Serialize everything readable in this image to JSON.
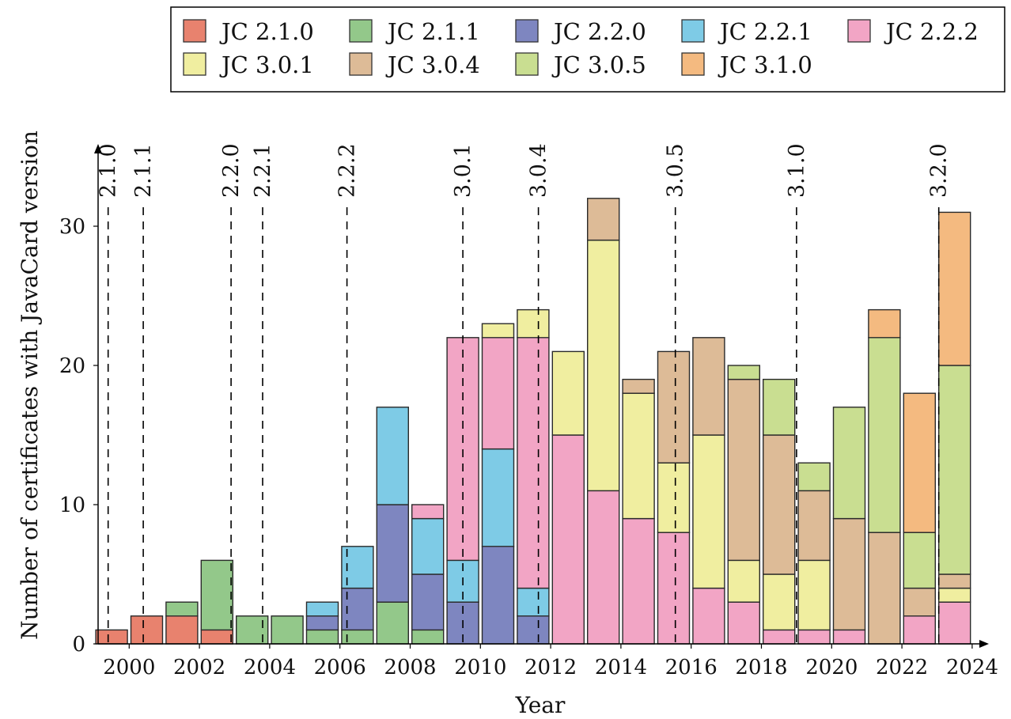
{
  "chart_data": {
    "type": "bar",
    "stacked": true,
    "title": "",
    "xlabel": "Year",
    "ylabel": "Number of certificates with JavaCard version",
    "ylim": [
      0,
      35
    ],
    "y_ticks": [
      0,
      10,
      20,
      30
    ],
    "x_range": [
      1999.25,
      2024.25
    ],
    "x_ticks": [
      2000,
      2002,
      2004,
      2006,
      2008,
      2010,
      2012,
      2014,
      2016,
      2018,
      2020,
      2022,
      2024
    ],
    "legend_position": "top",
    "series": [
      {
        "name": "JC 2.1.0",
        "color": "#E8826E"
      },
      {
        "name": "JC 2.1.1",
        "color": "#93C88A"
      },
      {
        "name": "JC 2.2.0",
        "color": "#7E86C0"
      },
      {
        "name": "JC 2.2.1",
        "color": "#7ECBE6"
      },
      {
        "name": "JC 2.2.2",
        "color": "#F2A5C5"
      },
      {
        "name": "JC 3.0.1",
        "color": "#F0EEA0"
      },
      {
        "name": "JC 3.0.4",
        "color": "#DDBB97"
      },
      {
        "name": "JC 3.0.5",
        "color": "#C9DE91"
      },
      {
        "name": "JC 3.1.0",
        "color": "#F4BA80"
      }
    ],
    "bars": [
      {
        "year": 1999,
        "values": [
          1,
          0,
          0,
          0,
          0,
          0,
          0,
          0,
          0
        ]
      },
      {
        "year": 2000,
        "values": [
          2,
          0,
          0,
          0,
          0,
          0,
          0,
          0,
          0
        ]
      },
      {
        "year": 2001,
        "values": [
          2,
          1,
          0,
          0,
          0,
          0,
          0,
          0,
          0
        ]
      },
      {
        "year": 2002,
        "values": [
          1,
          5,
          0,
          0,
          0,
          0,
          0,
          0,
          0
        ]
      },
      {
        "year": 2003,
        "values": [
          0,
          2,
          0,
          0,
          0,
          0,
          0,
          0,
          0
        ]
      },
      {
        "year": 2004,
        "values": [
          0,
          2,
          0,
          0,
          0,
          0,
          0,
          0,
          0
        ]
      },
      {
        "year": 2005,
        "values": [
          0,
          1,
          1,
          1,
          0,
          0,
          0,
          0,
          0
        ]
      },
      {
        "year": 2006,
        "values": [
          0,
          1,
          3,
          3,
          0,
          0,
          0,
          0,
          0
        ]
      },
      {
        "year": 2007,
        "values": [
          0,
          3,
          7,
          7,
          0,
          0,
          0,
          0,
          0
        ]
      },
      {
        "year": 2008,
        "values": [
          0,
          1,
          4,
          4,
          1,
          0,
          0,
          0,
          0
        ]
      },
      {
        "year": 2009,
        "values": [
          0,
          0,
          3,
          3,
          16,
          0,
          0,
          0,
          0
        ]
      },
      {
        "year": 2010,
        "values": [
          0,
          0,
          7,
          7,
          8,
          1,
          0,
          0,
          0
        ]
      },
      {
        "year": 2011,
        "values": [
          0,
          0,
          2,
          2,
          18,
          2,
          0,
          0,
          0
        ]
      },
      {
        "year": 2012,
        "values": [
          0,
          0,
          0,
          0,
          15,
          6,
          0,
          0,
          0
        ]
      },
      {
        "year": 2013,
        "values": [
          0,
          0,
          0,
          0,
          11,
          18,
          3,
          0,
          0
        ]
      },
      {
        "year": 2014,
        "values": [
          0,
          0,
          0,
          0,
          9,
          9,
          1,
          0,
          0
        ]
      },
      {
        "year": 2015,
        "values": [
          0,
          0,
          0,
          0,
          8,
          5,
          8,
          0,
          0
        ]
      },
      {
        "year": 2016,
        "values": [
          0,
          0,
          0,
          0,
          4,
          11,
          7,
          0,
          0
        ]
      },
      {
        "year": 2017,
        "values": [
          0,
          0,
          0,
          0,
          3,
          3,
          13,
          1,
          0
        ]
      },
      {
        "year": 2018,
        "values": [
          0,
          0,
          0,
          0,
          1,
          4,
          10,
          4,
          0
        ]
      },
      {
        "year": 2019,
        "values": [
          0,
          0,
          0,
          0,
          1,
          5,
          5,
          2,
          0
        ]
      },
      {
        "year": 2020,
        "values": [
          0,
          0,
          0,
          0,
          1,
          0,
          8,
          8,
          0
        ]
      },
      {
        "year": 2021,
        "values": [
          0,
          0,
          0,
          0,
          0,
          0,
          8,
          14,
          2
        ]
      },
      {
        "year": 2022,
        "values": [
          0,
          0,
          0,
          0,
          2,
          0,
          2,
          4,
          10
        ]
      },
      {
        "year": 2023,
        "values": [
          0,
          0,
          0,
          0,
          3,
          1,
          1,
          15,
          11
        ]
      }
    ],
    "releases": [
      {
        "label": "2.1.0",
        "x": 1999.4
      },
      {
        "label": "2.1.1",
        "x": 2000.4
      },
      {
        "label": "2.2.0",
        "x": 2002.9
      },
      {
        "label": "2.2.1",
        "x": 2003.8
      },
      {
        "label": "2.2.2",
        "x": 2006.2
      },
      {
        "label": "3.0.1",
        "x": 2009.5
      },
      {
        "label": "3.0.4",
        "x": 2011.65
      },
      {
        "label": "3.0.5",
        "x": 2015.55
      },
      {
        "label": "3.1.0",
        "x": 2019.0
      },
      {
        "label": "3.2.0",
        "x": 2023.05
      }
    ]
  }
}
